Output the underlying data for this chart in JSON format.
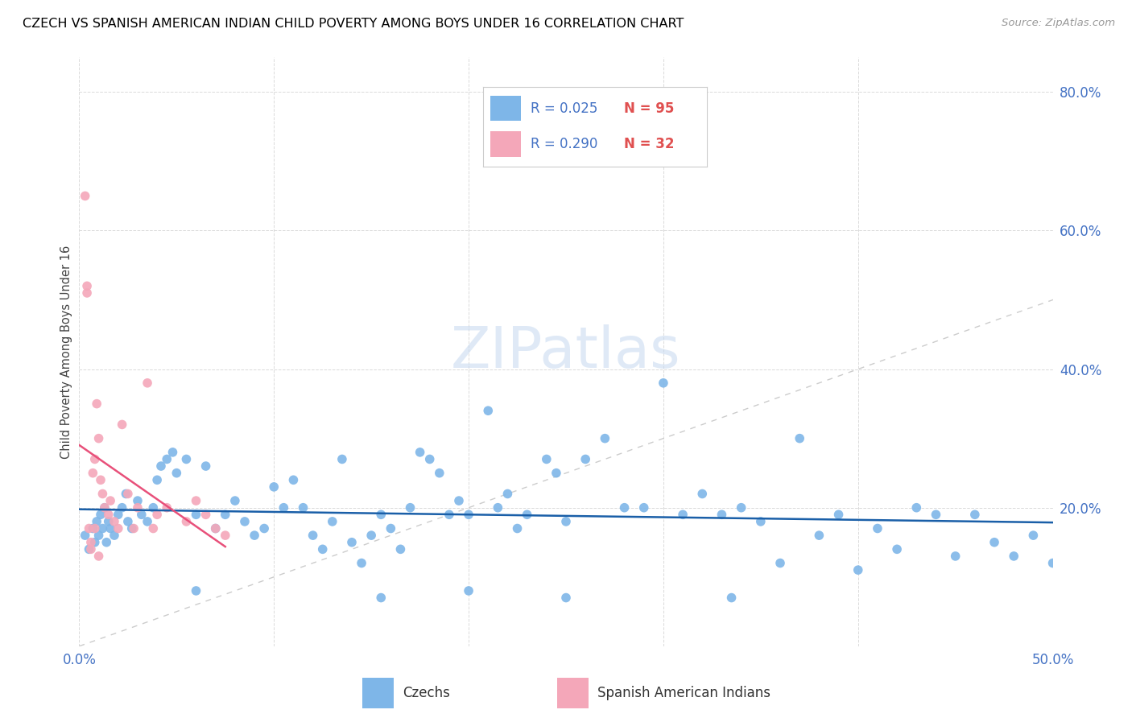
{
  "title": "CZECH VS SPANISH AMERICAN INDIAN CHILD POVERTY AMONG BOYS UNDER 16 CORRELATION CHART",
  "source": "Source: ZipAtlas.com",
  "ylabel": "Child Poverty Among Boys Under 16",
  "xlim": [
    0.0,
    0.5
  ],
  "ylim": [
    0.0,
    0.85
  ],
  "czechs_color": "#7EB6E8",
  "spanish_color": "#F4A7B9",
  "trend_czech_color": "#1A5FA8",
  "trend_spanish_color": "#E8507A",
  "diagonal_color": "#CCCCCC",
  "label_color": "#4472C4",
  "R_czech": 0.025,
  "N_czech": 95,
  "R_spanish": 0.29,
  "N_spanish": 32,
  "czechs_x": [
    0.003,
    0.005,
    0.007,
    0.008,
    0.009,
    0.01,
    0.011,
    0.012,
    0.013,
    0.014,
    0.015,
    0.016,
    0.018,
    0.02,
    0.022,
    0.024,
    0.025,
    0.027,
    0.03,
    0.032,
    0.035,
    0.038,
    0.04,
    0.042,
    0.045,
    0.048,
    0.05,
    0.055,
    0.06,
    0.065,
    0.07,
    0.075,
    0.08,
    0.085,
    0.09,
    0.095,
    0.1,
    0.105,
    0.11,
    0.115,
    0.12,
    0.125,
    0.13,
    0.135,
    0.14,
    0.145,
    0.15,
    0.155,
    0.16,
    0.165,
    0.17,
    0.175,
    0.18,
    0.185,
    0.19,
    0.195,
    0.2,
    0.21,
    0.215,
    0.22,
    0.225,
    0.23,
    0.24,
    0.245,
    0.25,
    0.26,
    0.27,
    0.28,
    0.29,
    0.3,
    0.31,
    0.32,
    0.33,
    0.34,
    0.35,
    0.36,
    0.37,
    0.38,
    0.39,
    0.4,
    0.41,
    0.42,
    0.43,
    0.44,
    0.45,
    0.46,
    0.47,
    0.48,
    0.49,
    0.5,
    0.155,
    0.25,
    0.335,
    0.06,
    0.2
  ],
  "czechs_y": [
    0.16,
    0.14,
    0.17,
    0.15,
    0.18,
    0.16,
    0.19,
    0.17,
    0.2,
    0.15,
    0.18,
    0.17,
    0.16,
    0.19,
    0.2,
    0.22,
    0.18,
    0.17,
    0.21,
    0.19,
    0.18,
    0.2,
    0.24,
    0.26,
    0.27,
    0.28,
    0.25,
    0.27,
    0.19,
    0.26,
    0.17,
    0.19,
    0.21,
    0.18,
    0.16,
    0.17,
    0.23,
    0.2,
    0.24,
    0.2,
    0.16,
    0.14,
    0.18,
    0.27,
    0.15,
    0.12,
    0.16,
    0.19,
    0.17,
    0.14,
    0.2,
    0.28,
    0.27,
    0.25,
    0.19,
    0.21,
    0.19,
    0.34,
    0.2,
    0.22,
    0.17,
    0.19,
    0.27,
    0.25,
    0.18,
    0.27,
    0.3,
    0.2,
    0.2,
    0.38,
    0.19,
    0.22,
    0.19,
    0.2,
    0.18,
    0.12,
    0.3,
    0.16,
    0.19,
    0.11,
    0.17,
    0.14,
    0.2,
    0.19,
    0.13,
    0.19,
    0.15,
    0.13,
    0.16,
    0.12,
    0.07,
    0.07,
    0.07,
    0.08,
    0.08
  ],
  "spanish_x": [
    0.003,
    0.004,
    0.005,
    0.006,
    0.007,
    0.008,
    0.009,
    0.01,
    0.011,
    0.012,
    0.013,
    0.015,
    0.016,
    0.018,
    0.02,
    0.004,
    0.006,
    0.008,
    0.01,
    0.022,
    0.025,
    0.028,
    0.03,
    0.035,
    0.038,
    0.04,
    0.045,
    0.055,
    0.06,
    0.065,
    0.07,
    0.075
  ],
  "spanish_y": [
    0.65,
    0.51,
    0.17,
    0.15,
    0.25,
    0.27,
    0.35,
    0.3,
    0.24,
    0.22,
    0.2,
    0.19,
    0.21,
    0.18,
    0.17,
    0.52,
    0.14,
    0.17,
    0.13,
    0.32,
    0.22,
    0.17,
    0.2,
    0.38,
    0.17,
    0.19,
    0.2,
    0.18,
    0.21,
    0.19,
    0.17,
    0.16
  ]
}
